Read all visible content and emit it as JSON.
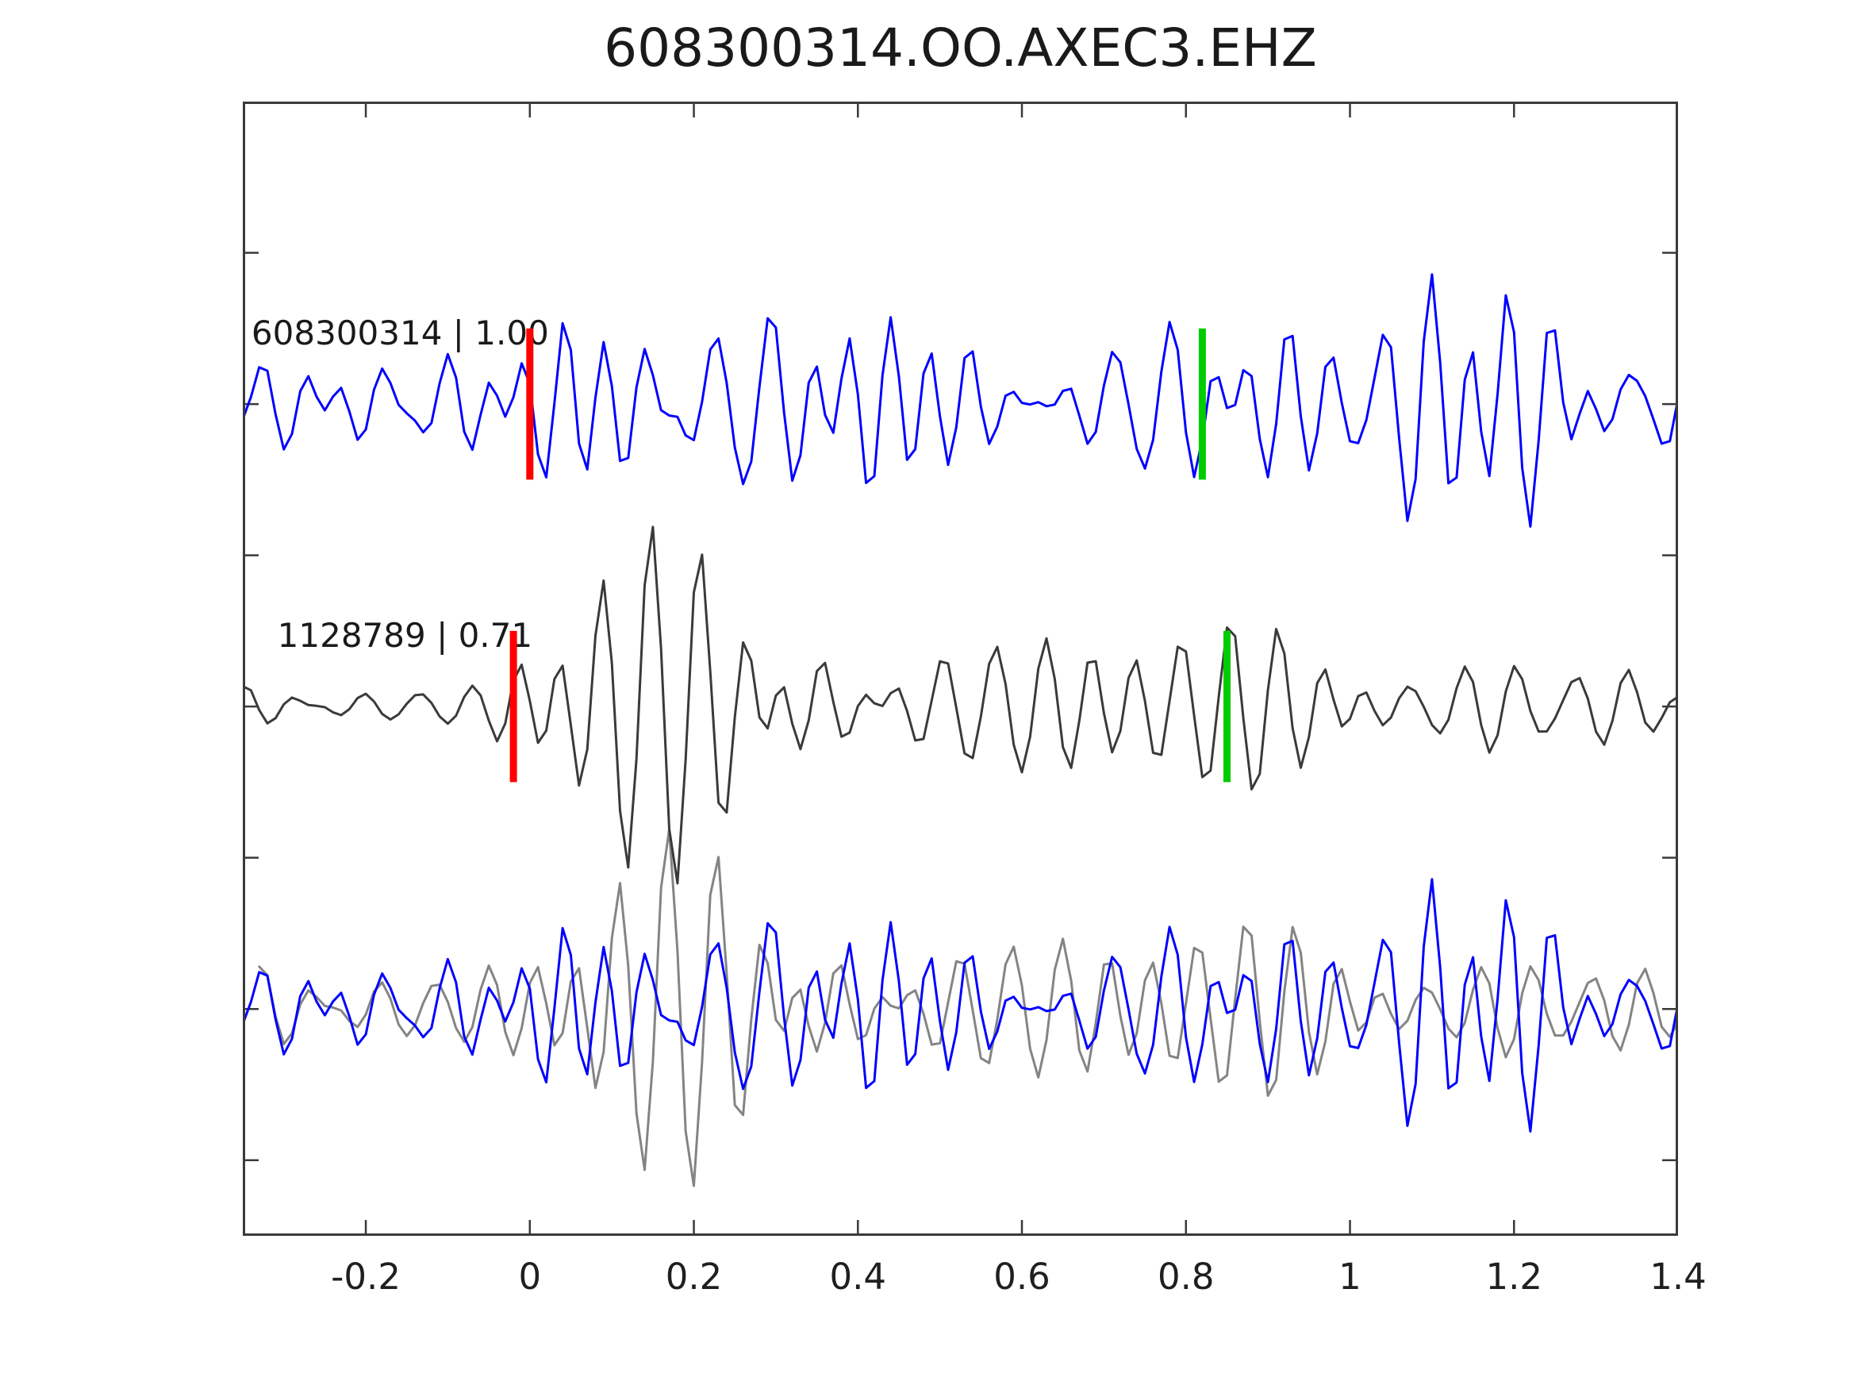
{
  "chart_data": {
    "type": "line",
    "subtype": "seismogram-template-match-comparison",
    "title": "608300314.OO.AXEC3.EHZ",
    "xlabel": "",
    "ylabel": "",
    "grid": false,
    "legend": null,
    "x_axis": {
      "lim": [
        -0.35,
        1.4
      ],
      "ticks": [
        -0.2,
        0,
        0.2,
        0.4,
        0.6,
        0.8,
        1,
        1.2,
        1.4
      ],
      "tick_labels": [
        "-0.2",
        "0",
        "0.2",
        "0.4",
        "0.6",
        "0.8",
        "1",
        "1.2",
        "1.4"
      ]
    },
    "y_axis": {
      "lim": [
        -0.75,
        3.0
      ],
      "ticks": [
        -0.5,
        0,
        0.5,
        1,
        1.5,
        2,
        2.5
      ],
      "tick_labels": []
    },
    "styles": {
      "background": "#ffffff",
      "spine_color": "#3a3a3a",
      "tick_color": "#3a3a3a",
      "text_color": "#1a1a1a",
      "pick_red": "#ff0000",
      "pick_green": "#00cc00",
      "trace_blue": "#0000ff",
      "trace_dark_gray": "#3a3a3a",
      "trace_light_gray": "#848484"
    },
    "pick_half_height": 0.25,
    "traces": [
      {
        "row": "top",
        "id": "608300314",
        "correlation": 1.0,
        "label": "608300314 | 1.00",
        "color": "#0000ff",
        "offset": 2,
        "picks": [
          {
            "time": 0.0,
            "color": "#ff0000"
          },
          {
            "time": 0.82,
            "color": "#00cc00"
          }
        ],
        "waveform": {
          "seed": 42,
          "samples": 176,
          "components": 12,
          "freq_hz": [
            12.5,
            25
          ],
          "max_amp": 0.54,
          "envelope": [
            [
              -0.35,
              0.45
            ],
            [
              -0.2,
              0.44
            ],
            [
              -0.1,
              0.42
            ],
            [
              -0.02,
              0.48
            ],
            [
              0.04,
              0.7
            ],
            [
              0.12,
              0.92
            ],
            [
              0.25,
              1.0
            ],
            [
              0.38,
              0.88
            ],
            [
              0.5,
              0.8
            ],
            [
              0.62,
              0.92
            ],
            [
              0.75,
              1.0
            ],
            [
              0.88,
              0.82
            ],
            [
              1.0,
              0.92
            ],
            [
              1.12,
              0.86
            ],
            [
              1.22,
              0.75
            ],
            [
              1.32,
              0.62
            ],
            [
              1.4,
              0.55
            ]
          ]
        }
      },
      {
        "row": "middle",
        "id": "1128789",
        "correlation": 0.71,
        "label": "1128789 | 0.71",
        "color": "#3a3a3a",
        "offset": 1,
        "picks": [
          {
            "time": -0.02,
            "color": "#ff0000"
          },
          {
            "time": 0.85,
            "color": "#00cc00"
          }
        ],
        "waveform": {
          "seed": 1337,
          "samples": 176,
          "components": 12,
          "freq_hz": [
            12,
            24
          ],
          "max_amp": 0.62,
          "envelope": [
            [
              -0.35,
              0.12
            ],
            [
              -0.15,
              0.12
            ],
            [
              -0.06,
              0.14
            ],
            [
              -0.02,
              0.35
            ],
            [
              0.02,
              0.6
            ],
            [
              0.07,
              0.95
            ],
            [
              0.13,
              1.0
            ],
            [
              0.2,
              0.92
            ],
            [
              0.3,
              0.88
            ],
            [
              0.38,
              0.62
            ],
            [
              0.48,
              0.52
            ],
            [
              0.6,
              0.5
            ],
            [
              0.72,
              0.54
            ],
            [
              0.85,
              0.5
            ],
            [
              1.0,
              0.46
            ],
            [
              1.15,
              0.46
            ],
            [
              1.28,
              0.42
            ],
            [
              1.4,
              0.4
            ]
          ]
        }
      },
      {
        "row": "bottom",
        "id": "overlay",
        "label": "",
        "offset": 0,
        "series": [
          {
            "use_waveform_of": 1,
            "color": "#848484",
            "shift": 0.02,
            "envelope": [
              [
                -0.35,
                0.25
              ],
              [
                -0.1,
                0.25
              ],
              [
                -0.02,
                0.35
              ],
              [
                0.02,
                0.6
              ],
              [
                0.07,
                0.95
              ],
              [
                0.13,
                1.0
              ],
              [
                0.2,
                0.92
              ],
              [
                0.3,
                0.88
              ],
              [
                0.38,
                0.62
              ],
              [
                0.48,
                0.55
              ],
              [
                0.6,
                0.52
              ],
              [
                0.72,
                0.54
              ],
              [
                0.85,
                0.52
              ],
              [
                1.0,
                0.5
              ],
              [
                1.15,
                0.48
              ],
              [
                1.28,
                0.45
              ],
              [
                1.4,
                0.45
              ]
            ]
          },
          {
            "use_waveform_of": 0,
            "color": "#0000ff",
            "shift": 0
          }
        ]
      }
    ]
  }
}
